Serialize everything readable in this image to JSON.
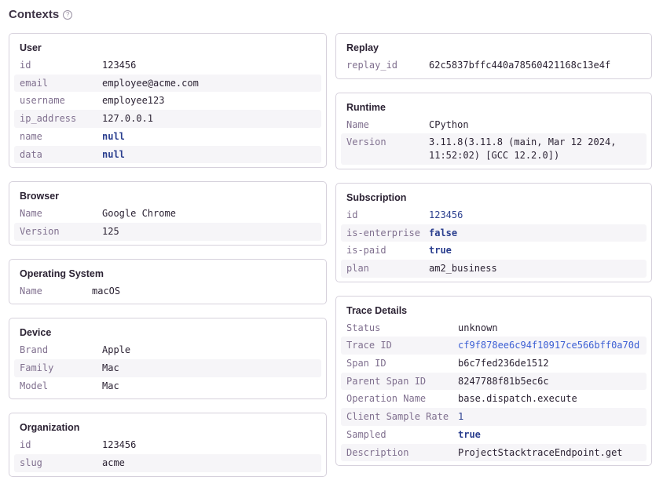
{
  "header": {
    "title": "Contexts",
    "help_icon": "question-circle-icon"
  },
  "colors": {
    "number": "#2b3f8f",
    "link": "#3c5fd4"
  },
  "left": [
    {
      "title": "User",
      "rows": [
        [
          "id",
          "123456",
          "text"
        ],
        [
          "email",
          "employee@acme.com",
          "text"
        ],
        [
          "username",
          "employee123",
          "text"
        ],
        [
          "ip_address",
          "127.0.0.1",
          "text"
        ],
        [
          "name",
          "null",
          "bool"
        ],
        [
          "data",
          "null",
          "bool"
        ]
      ]
    },
    {
      "title": "Browser",
      "rows": [
        [
          "Name",
          "Google Chrome",
          "text"
        ],
        [
          "Version",
          "125",
          "text"
        ]
      ]
    },
    {
      "title": "Operating System",
      "rows": [
        [
          "Name",
          "macOS",
          "text"
        ]
      ]
    },
    {
      "title": "Device",
      "rows": [
        [
          "Brand",
          "Apple",
          "text"
        ],
        [
          "Family",
          "Mac",
          "text"
        ],
        [
          "Model",
          "Mac",
          "text"
        ]
      ]
    },
    {
      "title": "Organization",
      "rows": [
        [
          "id",
          "123456",
          "text"
        ],
        [
          "slug",
          "acme",
          "text"
        ]
      ]
    }
  ],
  "right": [
    {
      "title": "Replay",
      "rows": [
        [
          "replay_id",
          "62c5837bffc440a78560421168c13e4f",
          "text"
        ]
      ]
    },
    {
      "title": "Runtime",
      "rows": [
        [
          "Name",
          "CPython",
          "text"
        ],
        [
          "Version",
          "3.11.8(3.11.8 (main, Mar 12 2024, 11:52:02) [GCC 12.2.0])",
          "text"
        ]
      ]
    },
    {
      "title": "Subscription",
      "rows": [
        [
          "id",
          "123456",
          "num"
        ],
        [
          "is-enterprise",
          "false",
          "bool"
        ],
        [
          "is-paid",
          "true",
          "bool"
        ],
        [
          "plan",
          "am2_business",
          "text"
        ]
      ]
    },
    {
      "title": "Trace Details",
      "rows": [
        [
          "Status",
          "unknown",
          "text"
        ],
        [
          "Trace ID",
          "cf9f878ee6c94f10917ce566bff0a70d",
          "link"
        ],
        [
          "Span ID",
          "b6c7fed236de1512",
          "text"
        ],
        [
          "Parent Span ID",
          "8247788f81b5ec6c",
          "text"
        ],
        [
          "Operation Name",
          "base.dispatch.execute",
          "text"
        ],
        [
          "Client Sample Rate",
          "1",
          "num"
        ],
        [
          "Sampled",
          "true",
          "bool"
        ],
        [
          "Description",
          "ProjectStacktraceEndpoint.get",
          "text"
        ]
      ]
    }
  ]
}
